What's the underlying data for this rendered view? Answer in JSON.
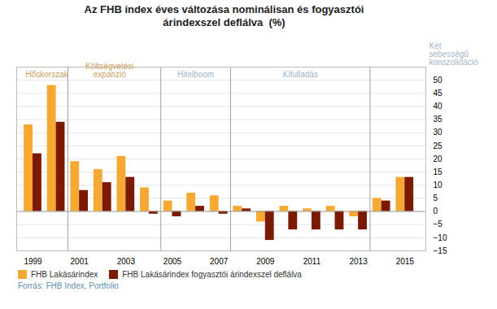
{
  "chart_data": {
    "type": "bar",
    "title": "Az FHB index éves változása nominálisan és fogyasztói\nárindexszel deflálva  (%)",
    "x": [
      1999,
      2000,
      2001,
      2002,
      2003,
      2004,
      2005,
      2006,
      2007,
      2008,
      2009,
      2010,
      2011,
      2012,
      2013,
      2014,
      2015
    ],
    "series": [
      {
        "name": "FHB Lakásárindex",
        "color": "#F5A832",
        "values": [
          33,
          48,
          19,
          16,
          21,
          9,
          4,
          7,
          6,
          2,
          -4,
          2,
          1,
          2,
          -2,
          5,
          13
        ]
      },
      {
        "name": "FHB Lakásárindex fogyasztói árindexszel deflálva",
        "color": "#7B1A00",
        "values": [
          22,
          34,
          8,
          11,
          13,
          -1,
          -2,
          2,
          -1,
          1,
          -11,
          -7,
          -7,
          -7,
          -7,
          4,
          13
        ]
      }
    ],
    "xlim": [
      1998.3,
      2015.9
    ],
    "xticks": [
      1999,
      2001,
      2003,
      2005,
      2007,
      2009,
      2011,
      2013,
      2015
    ],
    "ylim": [
      -15,
      55
    ],
    "yticks": [
      -15,
      -10,
      -5,
      0,
      5,
      10,
      15,
      20,
      25,
      30,
      35,
      40,
      45,
      50
    ],
    "grid": true,
    "legend": "lower left",
    "vlines": [
      2000.5,
      2004.5,
      2007.5,
      2013.5
    ],
    "annotations": [
      {
        "text": "Hőskorszak",
        "x": 1999.6,
        "y": 51,
        "color": "#C8A060"
      },
      {
        "text": "Költségvetési\nexpanzió",
        "x": 2002.3,
        "y": 51,
        "color": "#C8A060"
      },
      {
        "text": "Hitelboom",
        "x": 2006.0,
        "y": 51,
        "color": "#A0B4CC"
      },
      {
        "text": "Kifulladás",
        "x": 2010.5,
        "y": 51,
        "color": "#A0B4CC"
      },
      {
        "text": "Két\nsebességű\nkonszolidáció",
        "color": "#A0B4CC"
      }
    ],
    "source": "Forrás: FHB Index, Portfolio"
  }
}
